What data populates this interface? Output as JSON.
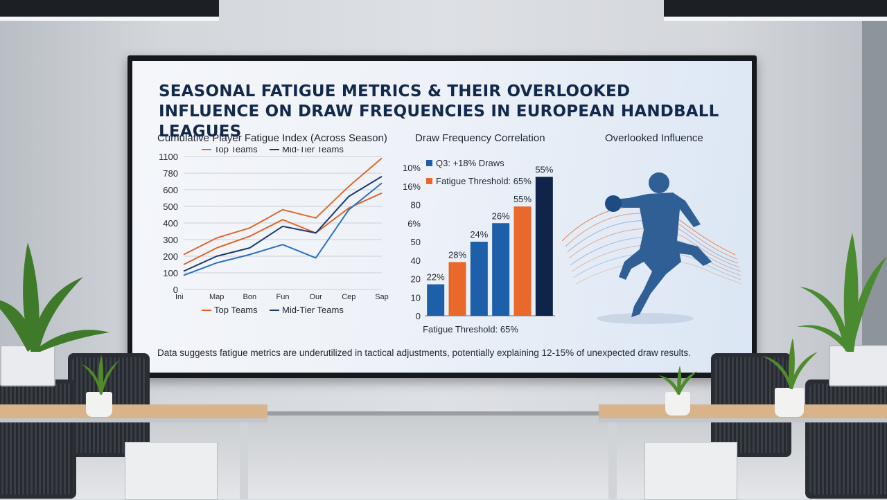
{
  "presentation": {
    "title": "SEASONAL FATIGUE METRICS & THEIR OVERLOOKED INFLUENCE ON DRAW FREQUENCIES IN EUROPEAN HANDBALL LEAGUES",
    "footnote": "Data suggests fatigue metrics are underutilized in tactical adjustments, potentially explaining 12-15% of unexpected draw results."
  },
  "panels": {
    "line_title": "Cumulative Player Fatigue Index (Across Season)",
    "bar_title": "Draw Frequency Correlation",
    "figure_title": "Overlooked Influence"
  },
  "colors": {
    "top_teams": "#e0662a",
    "mid_tier": "#173a6e",
    "bar_blue": "#1d5fa8",
    "bar_orange": "#e8692a",
    "bar_navy": "#0f2448",
    "athlete": "#2f5f95"
  },
  "chart_data": [
    {
      "type": "line",
      "title": "Cumulative Player Fatigue Index (Across Season)",
      "x": [
        "Ini",
        "Map",
        "Bon",
        "Fun",
        "Our",
        "Cep",
        "Sap"
      ],
      "y_ticks": [
        "1100",
        "780",
        "600",
        "500",
        "400",
        "300",
        "200",
        "100",
        "0"
      ],
      "ylim": [
        0,
        8
      ],
      "grid": true,
      "legend_placement": "top",
      "legend_bottom": true,
      "series": [
        {
          "name": "Top Teams",
          "color": "#e0662a",
          "values": [
            2.1,
            3.1,
            3.7,
            4.8,
            4.3,
            6.2,
            7.9
          ]
        },
        {
          "name": "Top Teams",
          "color": "#e0662a",
          "values": [
            1.5,
            2.5,
            3.2,
            4.2,
            3.4,
            4.9,
            5.8
          ]
        },
        {
          "name": "Mid-Tier Teams",
          "color": "#173a6e",
          "values": [
            1.1,
            2.0,
            2.5,
            3.8,
            3.4,
            5.6,
            6.8
          ]
        },
        {
          "name": "Mid-Tier Teams",
          "color": "#2b6fc0",
          "values": [
            0.85,
            1.6,
            2.1,
            2.7,
            1.9,
            4.8,
            6.4
          ]
        }
      ]
    },
    {
      "type": "bar",
      "title": "Draw Frequency Correlation",
      "y_ticks": [
        "10%",
        "16%",
        "80",
        "6%",
        "50",
        "40",
        "20",
        "10",
        "0"
      ],
      "ylim": [
        0,
        8
      ],
      "legend": [
        "Q3: +18% Draws",
        "Fatigue Threshold: 65%"
      ],
      "xlabel": "Fatigue Threshold: 65%",
      "bars": [
        {
          "label": "22%",
          "value": 1.7,
          "color": "#1d5fa8"
        },
        {
          "label": "28%",
          "value": 2.9,
          "color": "#e8692a"
        },
        {
          "label": "24%",
          "value": 4.0,
          "color": "#1d5fa8"
        },
        {
          "label": "26%",
          "value": 5.0,
          "color": "#1d5fa8"
        },
        {
          "label": "55%",
          "value": 5.9,
          "color": "#e8692a"
        },
        {
          "label": "55%",
          "value": 7.5,
          "color": "#0f2448"
        }
      ]
    }
  ]
}
